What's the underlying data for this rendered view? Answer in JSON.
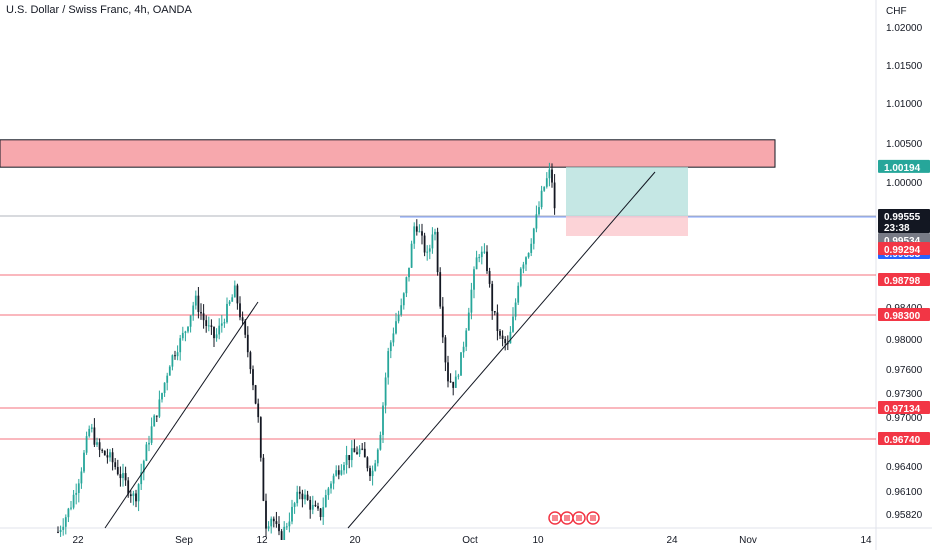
{
  "header": {
    "title": "U.S. Dollar / Swiss Franc, 4h, OANDA"
  },
  "chart_data": {
    "type": "candlestick",
    "title": "U.S. Dollar / Swiss Franc, 4h, OANDA",
    "ylabel": "CHF",
    "ylim": [
      0.9555,
      1.0235
    ],
    "y_ticks": [
      "1.02000",
      "1.01500",
      "1.01000",
      "1.00500",
      "1.00000",
      "0.98400",
      "0.98000",
      "0.97600",
      "0.97300",
      "0.97000",
      "0.96400",
      "0.96100",
      "0.95820"
    ],
    "x_ticks": [
      "22",
      "Sep",
      "12",
      "20",
      "Oct",
      "10",
      "24",
      "Nov",
      "14"
    ],
    "price_tags": [
      {
        "label": "1.00194",
        "color": "#26a69a",
        "text_color": "#ffffff"
      },
      {
        "label": "0.99555",
        "color": "#131722",
        "text_color": "#ffffff"
      },
      {
        "label": "23:38",
        "color": "#131722",
        "text_color": "#ffffff"
      },
      {
        "label": "0.99534",
        "color": "#787b86",
        "text_color": "#ffffff"
      },
      {
        "label": "0.99533",
        "color": "#2962ff",
        "text_color": "#ffffff"
      },
      {
        "label": "0.99294",
        "color": "#f23645",
        "text_color": "#ffffff"
      },
      {
        "label": "0.98798",
        "color": "#f23645",
        "text_color": "#ffffff"
      },
      {
        "label": "0.98300",
        "color": "#f23645",
        "text_color": "#ffffff"
      },
      {
        "label": "0.97134",
        "color": "#f23645",
        "text_color": "#ffffff"
      },
      {
        "label": "0.96740",
        "color": "#f23645",
        "text_color": "#ffffff"
      }
    ],
    "horizontal_levels": [
      0.98798,
      0.983,
      0.97134,
      0.9674
    ],
    "resistance_zone": [
      1.0019,
      1.0054
    ],
    "position": {
      "entry": 0.99555,
      "target": 1.00194,
      "stop": 0.99294
    },
    "current_price": 0.99555,
    "colors": {
      "up": "#26a69a",
      "down": "#131722",
      "resistance": "#f7a8ad",
      "target": "#b2dfdb",
      "stop": "#fbcbd0",
      "level": "#f23645"
    }
  },
  "events_icon": "flag-icon"
}
